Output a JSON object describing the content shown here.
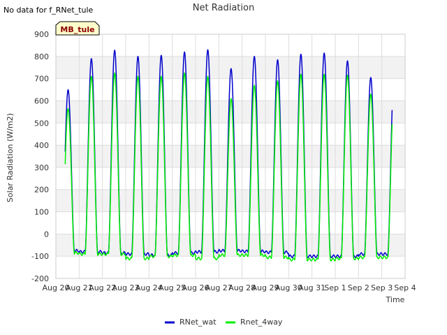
{
  "chart_data": {
    "type": "line",
    "title": "Net Radiation",
    "xlabel": "Time",
    "ylabel": "Solar Radiation (W/m2)",
    "no_data_note": "No data for f_RNet_tule",
    "site_badge": "MB_tule",
    "ylim": [
      -200,
      900
    ],
    "yticks": [
      -200,
      -100,
      0,
      100,
      200,
      300,
      400,
      500,
      600,
      700,
      800,
      900
    ],
    "xlim": [
      0,
      15
    ],
    "xticks": [
      {
        "pos": 0,
        "label": "Aug 20"
      },
      {
        "pos": 1,
        "label": "Aug 21"
      },
      {
        "pos": 2,
        "label": "Aug 22"
      },
      {
        "pos": 3,
        "label": "Aug 23"
      },
      {
        "pos": 4,
        "label": "Aug 24"
      },
      {
        "pos": 5,
        "label": "Aug 25"
      },
      {
        "pos": 6,
        "label": "Aug 26"
      },
      {
        "pos": 7,
        "label": "Aug 27"
      },
      {
        "pos": 8,
        "label": "Aug 28"
      },
      {
        "pos": 9,
        "label": "Aug 29"
      },
      {
        "pos": 10,
        "label": "Aug 30"
      },
      {
        "pos": 11,
        "label": "Aug 31"
      },
      {
        "pos": 12,
        "label": "Sep 1"
      },
      {
        "pos": 13,
        "label": "Sep 2"
      },
      {
        "pos": 14,
        "label": "Sep 3"
      },
      {
        "pos": 15,
        "label": "Sep 4"
      }
    ],
    "data_start_day": 0.4,
    "data_end_day": 14.45,
    "series": [
      {
        "name": "RNet_wat",
        "color": "#0000cc",
        "daily_peaks": [
          650,
          790,
          828,
          800,
          805,
          820,
          830,
          745,
          800,
          785,
          810,
          815,
          780,
          705
        ],
        "night_values": [
          -75,
          -80,
          -85,
          -90,
          -95,
          -85,
          -80,
          -75,
          -78,
          -82,
          -100,
          -100,
          -100,
          -90
        ]
      },
      {
        "name": "Rnet_4way",
        "color": "#00ee00",
        "daily_peaks": [
          565,
          710,
          725,
          710,
          710,
          725,
          710,
          610,
          670,
          690,
          720,
          720,
          715,
          630
        ],
        "night_values": [
          -85,
          -90,
          -90,
          -110,
          -100,
          -95,
          -110,
          -95,
          -95,
          -105,
          -115,
          -115,
          -110,
          -105
        ]
      }
    ],
    "legend_position": "bottom-center",
    "colors": {
      "band": "#f2f2f2",
      "grid": "#dddddd",
      "badge_bg": "#ffffcc",
      "badge_border": "#000000"
    }
  }
}
